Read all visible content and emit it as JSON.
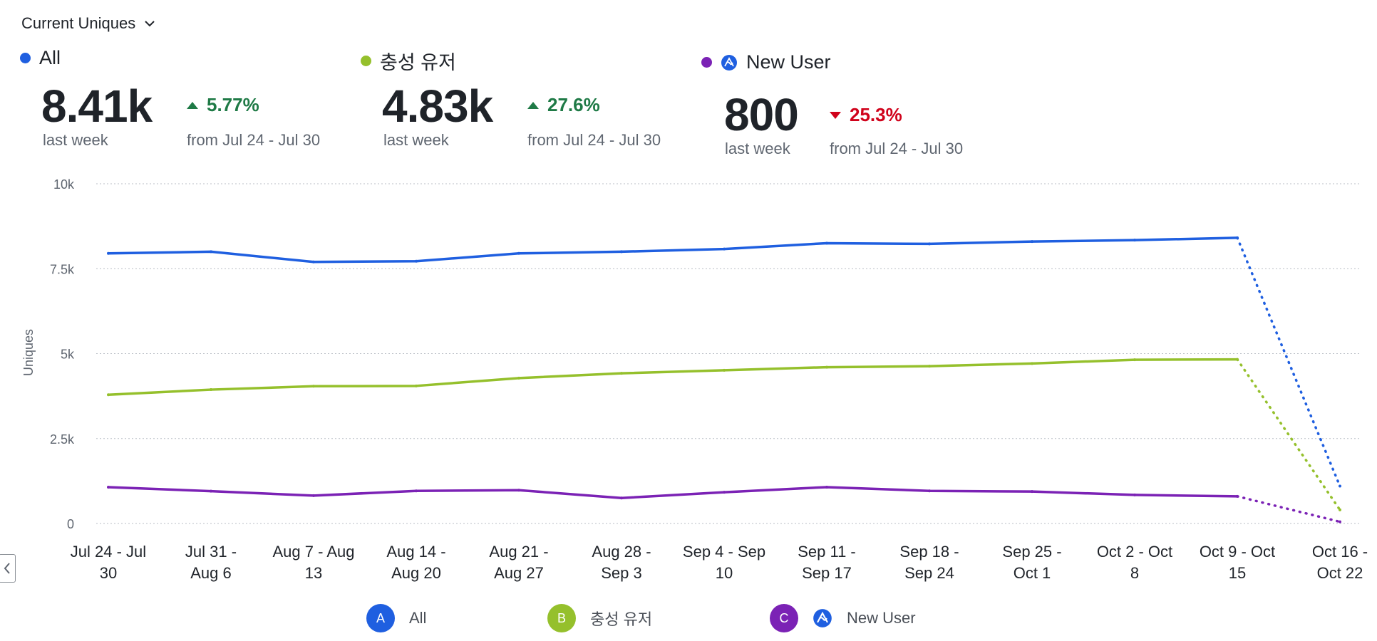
{
  "header": {
    "metric_label": "Current Uniques"
  },
  "summaries": [
    {
      "id": "all",
      "name": "All",
      "color": "#1f5fe0",
      "value": "8.41k",
      "period": "last week",
      "change": "5.77%",
      "direction": "up",
      "from": "from Jul 24 - Jul 30"
    },
    {
      "id": "loyal",
      "name": "충성 유저",
      "color": "#95c02c",
      "value": "4.83k",
      "period": "last week",
      "change": "27.6%",
      "direction": "up",
      "from": "from Jul 24 - Jul 30"
    },
    {
      "id": "new",
      "name": "New User",
      "color": "#7b22b5",
      "value": "800",
      "period": "last week",
      "change": "25.3%",
      "direction": "down",
      "from": "from Jul 24 - Jul 30"
    }
  ],
  "legend": [
    {
      "badge": "A",
      "label": "All",
      "color": "#1f5fe0"
    },
    {
      "badge": "B",
      "label": "충성 유저",
      "color": "#95c02c"
    },
    {
      "badge": "C",
      "label": "New User",
      "color": "#7b22b5"
    }
  ],
  "chart_data": {
    "type": "line",
    "ylabel": "Uniques",
    "xlabel": "",
    "ylim": [
      0,
      10000
    ],
    "yticks": [
      0,
      2500,
      5000,
      7500,
      10000
    ],
    "ytick_labels": [
      "0",
      "2.5k",
      "5k",
      "7.5k",
      "10k"
    ],
    "grid": true,
    "categories": [
      "Jul 24 - Jul 30",
      "Jul 31 - Aug 6",
      "Aug 7 - Aug 13",
      "Aug 14 - Aug 20",
      "Aug 21 - Aug 27",
      "Aug 28 - Sep 3",
      "Sep 4 - Sep 10",
      "Sep 11 - Sep 17",
      "Sep 18 - Sep 24",
      "Sep 25 - Oct 1",
      "Oct 2 - Oct 8",
      "Oct 9 - Oct 15",
      "Oct 16 - Oct 22"
    ],
    "category_labels": [
      [
        "Jul 24 - Jul",
        "30"
      ],
      [
        "Jul 31 -",
        "Aug 6"
      ],
      [
        "Aug 7 - Aug",
        "13"
      ],
      [
        "Aug 14 -",
        "Aug 20"
      ],
      [
        "Aug 21 -",
        "Aug 27"
      ],
      [
        "Aug 28 -",
        "Sep 3"
      ],
      [
        "Sep 4 - Sep",
        "10"
      ],
      [
        "Sep 11 -",
        "Sep 17"
      ],
      [
        "Sep 18 -",
        "Sep 24"
      ],
      [
        "Sep 25 -",
        "Oct 1"
      ],
      [
        "Oct 2 - Oct",
        "8"
      ],
      [
        "Oct 9 - Oct",
        "15"
      ],
      [
        "Oct 16 -",
        "Oct 22"
      ]
    ],
    "incomplete_last_point": true,
    "series": [
      {
        "name": "All",
        "color": "#1f5fe0",
        "values": [
          7950,
          8000,
          7700,
          7720,
          7950,
          8000,
          8080,
          8250,
          8230,
          8300,
          8340,
          8410,
          1100
        ]
      },
      {
        "name": "충성 유저",
        "color": "#95c02c",
        "values": [
          3790,
          3940,
          4040,
          4050,
          4280,
          4420,
          4510,
          4600,
          4630,
          4710,
          4820,
          4830,
          400
        ]
      },
      {
        "name": "New User",
        "color": "#7b22b5",
        "values": [
          1070,
          950,
          820,
          960,
          980,
          750,
          920,
          1070,
          960,
          940,
          840,
          800,
          50
        ]
      }
    ]
  }
}
